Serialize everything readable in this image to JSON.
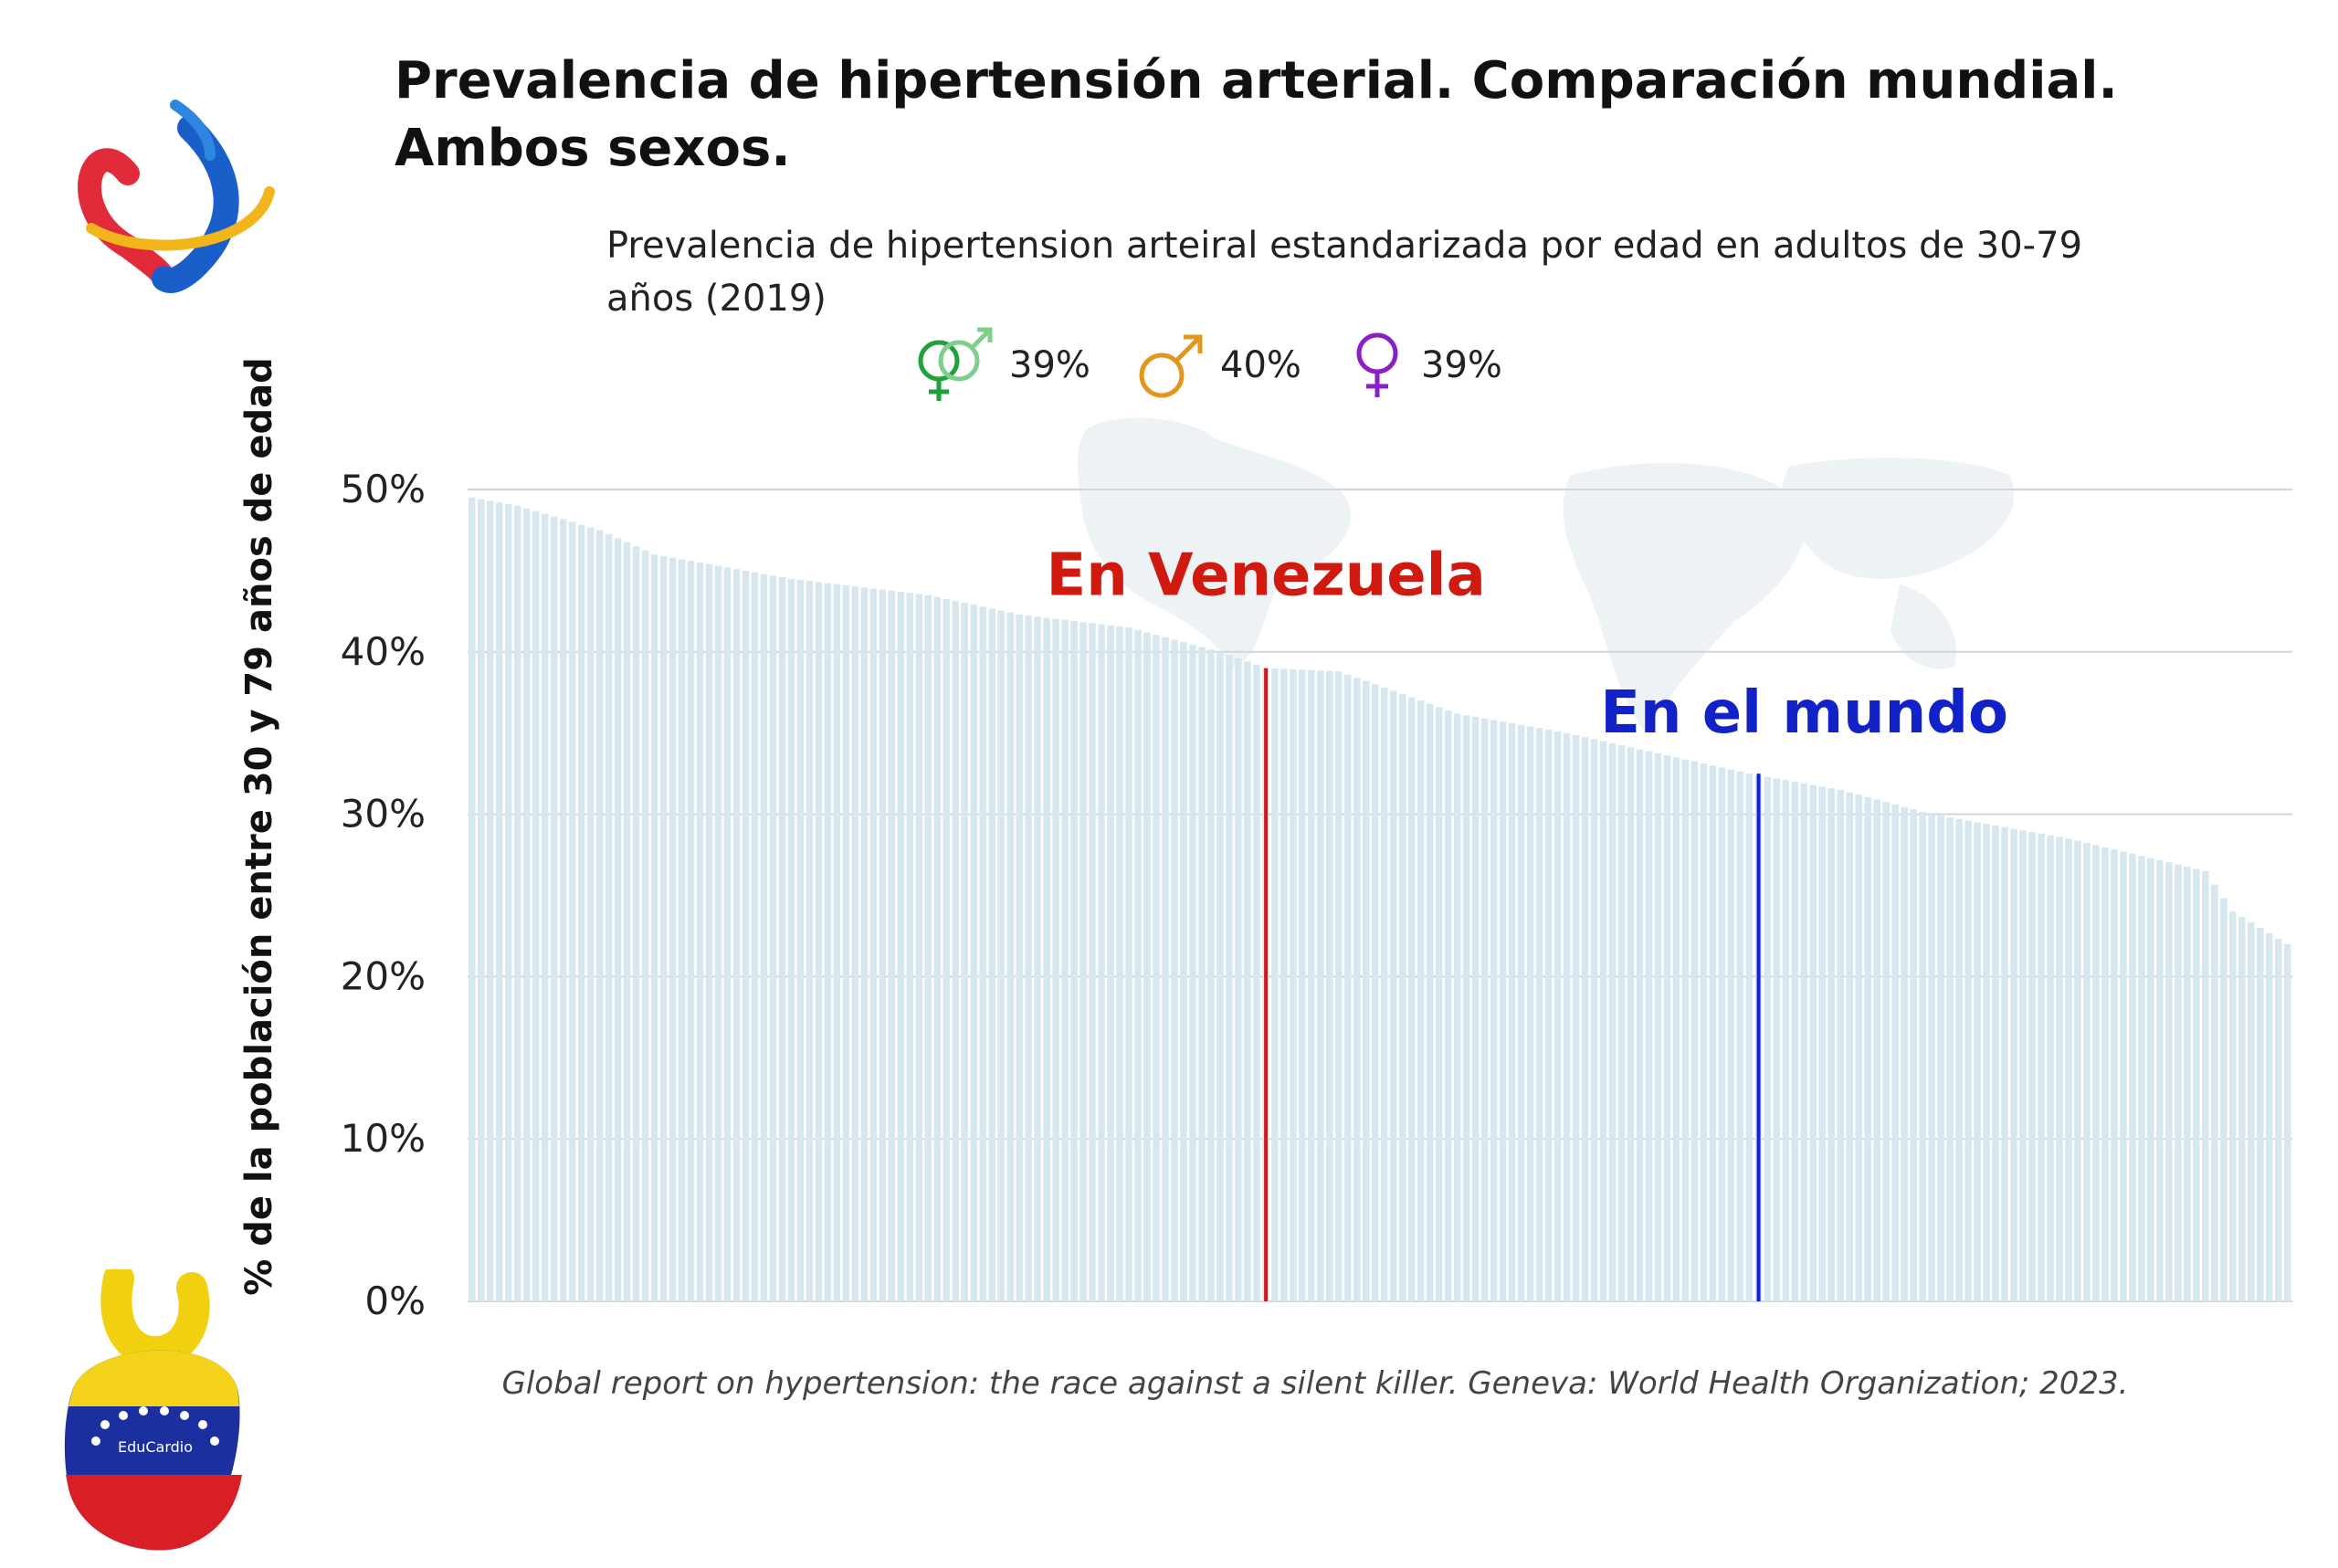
{
  "title_line1": "Prevalencia de hipertensión arterial. Comparación mundial.",
  "title_line2": "Ambos sexos.",
  "logo_text": "EduCardio",
  "chart_data": {
    "type": "bar",
    "subtitle": "Prevalencia de hipertension arteiral estandarizada por edad en adultos de 30-79 años (2019)",
    "ylabel": "% de la población entre 30 y 79 años de edad",
    "ylim": [
      0,
      50
    ],
    "y_ticks": [
      "0%",
      "10%",
      "20%",
      "30%",
      "40%",
      "50%"
    ],
    "y_tick_values": [
      0,
      10,
      20,
      30,
      40,
      50
    ],
    "grid": true,
    "sorted": "descending",
    "n_countries": 200,
    "profile": [
      {
        "rank": 0,
        "value": 49.5
      },
      {
        "rank": 5,
        "value": 49.0
      },
      {
        "rank": 14,
        "value": 47.5
      },
      {
        "rank": 20,
        "value": 46.0
      },
      {
        "rank": 35,
        "value": 44.5
      },
      {
        "rank": 50,
        "value": 43.5
      },
      {
        "rank": 60,
        "value": 42.3
      },
      {
        "rank": 72,
        "value": 41.5
      },
      {
        "rank": 82,
        "value": 40.0
      },
      {
        "rank": 87,
        "value": 39.0
      },
      {
        "rank": 95,
        "value": 38.8
      },
      {
        "rank": 108,
        "value": 36.2
      },
      {
        "rank": 120,
        "value": 35.0
      },
      {
        "rank": 140,
        "value": 32.5
      },
      {
        "rank": 150,
        "value": 31.5
      },
      {
        "rank": 160,
        "value": 30.0
      },
      {
        "rank": 175,
        "value": 28.5
      },
      {
        "rank": 190,
        "value": 26.5
      },
      {
        "rank": 193,
        "value": 24.0
      },
      {
        "rank": 199,
        "value": 22.0
      }
    ],
    "bar_color": "#d7e7ef",
    "highlights": [
      {
        "label": "En Venezuela",
        "value": 39,
        "rank": 87,
        "color": "#d0190f"
      },
      {
        "label": "En el mundo",
        "value": 32.5,
        "rank": 141,
        "color": "#1022c8"
      }
    ],
    "by_sex": [
      {
        "icon": "both-sexes-icon",
        "value": "39%",
        "color": "#1fa23a"
      },
      {
        "icon": "male-icon",
        "value": "40%",
        "color": "#e3951c"
      },
      {
        "icon": "female-icon",
        "value": "39%",
        "color": "#8a1fc4"
      }
    ],
    "source": "Global report on hypertension: the race against a silent killer. Geneva: World Health Organization; 2023."
  }
}
